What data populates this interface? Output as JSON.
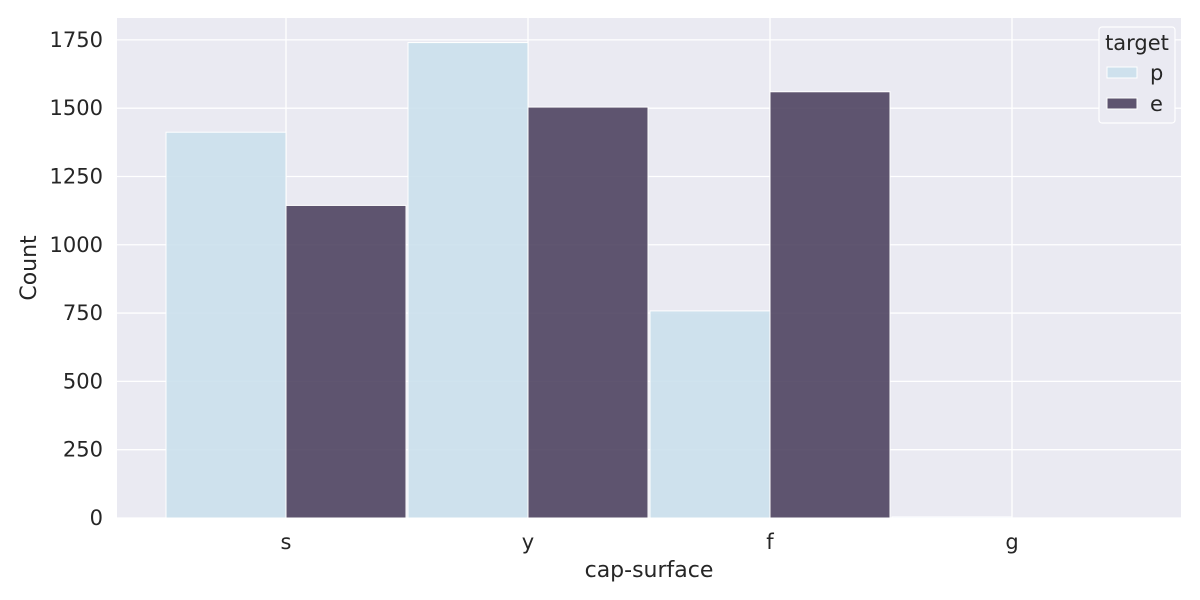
{
  "chart_data": {
    "type": "bar",
    "xlabel": "cap-surface",
    "ylabel": "Count",
    "categories": [
      "s",
      "y",
      "f",
      "g"
    ],
    "ylim": [
      0,
      1830
    ],
    "yticks": [
      0,
      250,
      500,
      750,
      1000,
      1250,
      1500,
      1750
    ],
    "ytick_labels": [
      "0",
      "250",
      "500",
      "750",
      "1000",
      "1250",
      "1500",
      "1750"
    ],
    "grid": true,
    "legend": {
      "title": "target",
      "placement": "top-right"
    },
    "series": [
      {
        "name": "p",
        "color": "#c9dfec",
        "values": [
          1412,
          1740,
          758,
          4
        ]
      },
      {
        "name": "e",
        "color": "#4a3f5c",
        "values": [
          1144,
          1504,
          1560,
          0
        ]
      }
    ]
  }
}
